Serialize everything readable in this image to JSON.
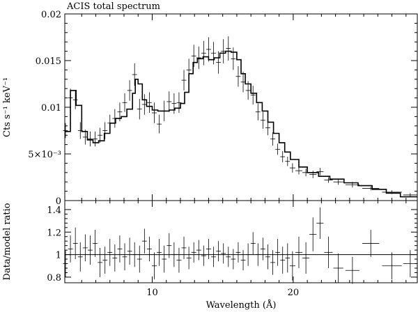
{
  "chart_data": {
    "type": "line",
    "title": "ACIS total spectrum",
    "xlabel": "Wavelength (Å)",
    "xlim": [
      3.8,
      28.8
    ],
    "x_ticks": [
      {
        "value": 10,
        "label": "10"
      },
      {
        "value": 20,
        "label": "20"
      }
    ],
    "x_minor_ticks": [
      5,
      6,
      7,
      8,
      9,
      11,
      12,
      13,
      14,
      15,
      16,
      17,
      18,
      19,
      21,
      22,
      23,
      24,
      25,
      26,
      27,
      28
    ],
    "panels": [
      {
        "name": "spectrum",
        "ylabel": "Cts s⁻¹ keV⁻¹",
        "ylim": [
          0,
          0.02
        ],
        "y_ticks": [
          {
            "value": 0,
            "label": "0"
          },
          {
            "value": 0.005,
            "label": "5×10⁻³"
          },
          {
            "value": 0.01,
            "label": "0.01"
          },
          {
            "value": 0.015,
            "label": "0.015"
          },
          {
            "value": 0.02,
            "label": "0.02"
          }
        ],
        "series": [
          {
            "style": "data-crosses",
            "x": [
              3.85,
              4.2,
              4.55,
              4.9,
              5.25,
              5.6,
              5.95,
              6.3,
              6.65,
              7.0,
              7.35,
              7.7,
              8.05,
              8.4,
              8.75,
              9.1,
              9.45,
              9.8,
              10.15,
              10.5,
              10.85,
              11.2,
              11.55,
              11.9,
              12.25,
              12.6,
              12.95,
              13.3,
              13.65,
              14.0,
              14.35,
              14.7,
              15.05,
              15.4,
              15.75,
              16.1,
              16.45,
              16.8,
              17.15,
              17.5,
              17.85,
              18.2,
              18.55,
              18.9,
              19.25,
              19.6,
              19.95,
              20.4,
              20.9,
              21.4,
              21.9,
              22.5,
              23.2,
              24.2,
              25.5,
              27.0,
              28.3
            ],
            "y": [
              0.0075,
              0.011,
              0.0108,
              0.0075,
              0.0068,
              0.0066,
              0.0066,
              0.007,
              0.0075,
              0.0083,
              0.0088,
              0.0095,
              0.0105,
              0.0118,
              0.0135,
              0.0098,
              0.0103,
              0.0105,
              0.0094,
              0.0082,
              0.0096,
              0.0106,
              0.0104,
              0.0105,
              0.0129,
              0.014,
              0.0155,
              0.0153,
              0.0158,
              0.0162,
              0.0158,
              0.0148,
              0.016,
              0.0163,
              0.0152,
              0.0133,
              0.0127,
              0.0118,
              0.0113,
              0.0095,
              0.0086,
              0.0078,
              0.0066,
              0.0055,
              0.0047,
              0.0042,
              0.0035,
              0.0032,
              0.003,
              0.0028,
              0.0031,
              0.0022,
              0.002,
              0.0017,
              0.0013,
              0.0009,
              0.0006
            ],
            "xerr": [
              0.17,
              0.17,
              0.17,
              0.17,
              0.17,
              0.17,
              0.17,
              0.17,
              0.17,
              0.17,
              0.17,
              0.17,
              0.17,
              0.17,
              0.17,
              0.17,
              0.17,
              0.17,
              0.17,
              0.17,
              0.17,
              0.17,
              0.17,
              0.17,
              0.17,
              0.17,
              0.17,
              0.17,
              0.17,
              0.17,
              0.17,
              0.17,
              0.17,
              0.17,
              0.17,
              0.17,
              0.17,
              0.17,
              0.17,
              0.17,
              0.17,
              0.17,
              0.17,
              0.17,
              0.17,
              0.17,
              0.2,
              0.25,
              0.25,
              0.25,
              0.25,
              0.3,
              0.35,
              0.5,
              0.6,
              0.7,
              0.5
            ],
            "yerr": [
              0.0008,
              0.001,
              0.001,
              0.0009,
              0.0008,
              0.0008,
              0.0008,
              0.0008,
              0.0009,
              0.0009,
              0.001,
              0.001,
              0.001,
              0.0011,
              0.0012,
              0.0011,
              0.0011,
              0.0011,
              0.0011,
              0.001,
              0.0011,
              0.0011,
              0.0011,
              0.0011,
              0.0011,
              0.0012,
              0.0012,
              0.0012,
              0.0013,
              0.0013,
              0.0012,
              0.0012,
              0.0013,
              0.0013,
              0.0012,
              0.0011,
              0.0011,
              0.001,
              0.001,
              0.0009,
              0.0009,
              0.0008,
              0.0007,
              0.0006,
              0.0006,
              0.0005,
              0.0005,
              0.0004,
              0.0004,
              0.0004,
              0.0004,
              0.0003,
              0.0003,
              0.0003,
              0.0002,
              0.0002,
              0.0002
            ]
          },
          {
            "style": "model-step",
            "x": [
              3.8,
              4.2,
              4.6,
              5.0,
              5.4,
              5.8,
              6.2,
              6.6,
              7.0,
              7.4,
              7.8,
              8.2,
              8.6,
              8.8,
              9.0,
              9.3,
              9.6,
              10.0,
              10.4,
              10.8,
              11.2,
              11.6,
              12.0,
              12.3,
              12.6,
              12.9,
              13.2,
              13.6,
              14.0,
              14.4,
              14.8,
              15.2,
              15.6,
              16.0,
              16.3,
              16.6,
              17.0,
              17.4,
              17.8,
              18.2,
              18.6,
              19.0,
              19.4,
              19.8,
              20.4,
              21.0,
              21.8,
              22.6,
              23.6,
              24.6,
              25.6,
              26.6,
              27.6,
              28.8
            ],
            "y": [
              0.0074,
              0.0118,
              0.0102,
              0.0074,
              0.0065,
              0.0062,
              0.0064,
              0.0072,
              0.0083,
              0.0088,
              0.009,
              0.0098,
              0.0115,
              0.013,
              0.0125,
              0.0108,
              0.0101,
              0.0097,
              0.0096,
              0.0096,
              0.0097,
              0.0099,
              0.0104,
              0.0116,
              0.0136,
              0.0148,
              0.0152,
              0.0154,
              0.0151,
              0.0153,
              0.0158,
              0.016,
              0.0159,
              0.0151,
              0.0136,
              0.0125,
              0.0115,
              0.0105,
              0.0096,
              0.0084,
              0.0072,
              0.0062,
              0.0052,
              0.0044,
              0.0036,
              0.003,
              0.0026,
              0.0023,
              0.0019,
              0.0016,
              0.0012,
              0.0008,
              0.0004,
              0.0003
            ]
          }
        ]
      },
      {
        "name": "residuals",
        "ylabel": "Data/model ratio",
        "ylim": [
          0.75,
          1.48
        ],
        "y_ticks": [
          {
            "value": 0.8,
            "label": "0.8"
          },
          {
            "value": 1.0,
            "label": "1"
          },
          {
            "value": 1.2,
            "label": "1.2"
          },
          {
            "value": 1.4,
            "label": "1.4"
          }
        ],
        "reference_line": 1.0,
        "series": [
          {
            "style": "data-crosses",
            "x": [
              3.85,
              4.2,
              4.55,
              4.9,
              5.25,
              5.6,
              5.95,
              6.3,
              6.65,
              7.0,
              7.35,
              7.7,
              8.05,
              8.4,
              8.75,
              9.1,
              9.45,
              9.8,
              10.15,
              10.5,
              10.85,
              11.2,
              11.55,
              11.9,
              12.25,
              12.6,
              12.95,
              13.3,
              13.65,
              14.0,
              14.35,
              14.7,
              15.05,
              15.4,
              15.75,
              16.1,
              16.45,
              16.8,
              17.15,
              17.5,
              17.85,
              18.2,
              18.55,
              18.9,
              19.25,
              19.6,
              19.95,
              20.4,
              20.9,
              21.4,
              21.9,
              22.5,
              23.2,
              24.2,
              25.5,
              27.0,
              28.3
            ],
            "y": [
              0.92,
              1.05,
              1.1,
              0.98,
              1.06,
              1.04,
              1.1,
              0.93,
              0.95,
              1.02,
              0.97,
              1.05,
              0.98,
              1.03,
              1.0,
              0.96,
              1.12,
              1.05,
              0.9,
              1.02,
              0.96,
              1.08,
              1.0,
              0.95,
              1.06,
              0.97,
              1.02,
              1.04,
              0.99,
              1.05,
              0.98,
              1.03,
              1.01,
              0.98,
              0.96,
              1.02,
              0.95,
              1.0,
              1.1,
              1.0,
              1.05,
              0.98,
              0.93,
              1.02,
              0.95,
              0.97,
              0.9,
              1.02,
              0.97,
              1.18,
              1.28,
              1.02,
              0.88,
              0.86,
              1.1,
              0.9,
              0.92
            ],
            "xerr": [
              0.17,
              0.17,
              0.17,
              0.17,
              0.17,
              0.17,
              0.17,
              0.17,
              0.17,
              0.17,
              0.17,
              0.17,
              0.17,
              0.17,
              0.17,
              0.17,
              0.17,
              0.17,
              0.17,
              0.17,
              0.17,
              0.17,
              0.17,
              0.17,
              0.17,
              0.17,
              0.17,
              0.17,
              0.17,
              0.17,
              0.17,
              0.17,
              0.17,
              0.17,
              0.17,
              0.17,
              0.17,
              0.17,
              0.17,
              0.17,
              0.17,
              0.17,
              0.17,
              0.17,
              0.17,
              0.17,
              0.2,
              0.25,
              0.25,
              0.25,
              0.25,
              0.3,
              0.35,
              0.5,
              0.6,
              0.7,
              0.5
            ],
            "yerr": [
              0.12,
              0.12,
              0.14,
              0.13,
              0.12,
              0.13,
              0.12,
              0.13,
              0.12,
              0.12,
              0.12,
              0.12,
              0.12,
              0.12,
              0.11,
              0.12,
              0.11,
              0.11,
              0.12,
              0.12,
              0.12,
              0.11,
              0.11,
              0.11,
              0.1,
              0.1,
              0.09,
              0.09,
              0.09,
              0.09,
              0.09,
              0.09,
              0.09,
              0.09,
              0.09,
              0.09,
              0.09,
              0.1,
              0.1,
              0.1,
              0.1,
              0.11,
              0.11,
              0.12,
              0.12,
              0.13,
              0.13,
              0.14,
              0.14,
              0.15,
              0.14,
              0.14,
              0.13,
              0.12,
              0.12,
              0.12,
              0.12
            ]
          }
        ]
      }
    ]
  }
}
